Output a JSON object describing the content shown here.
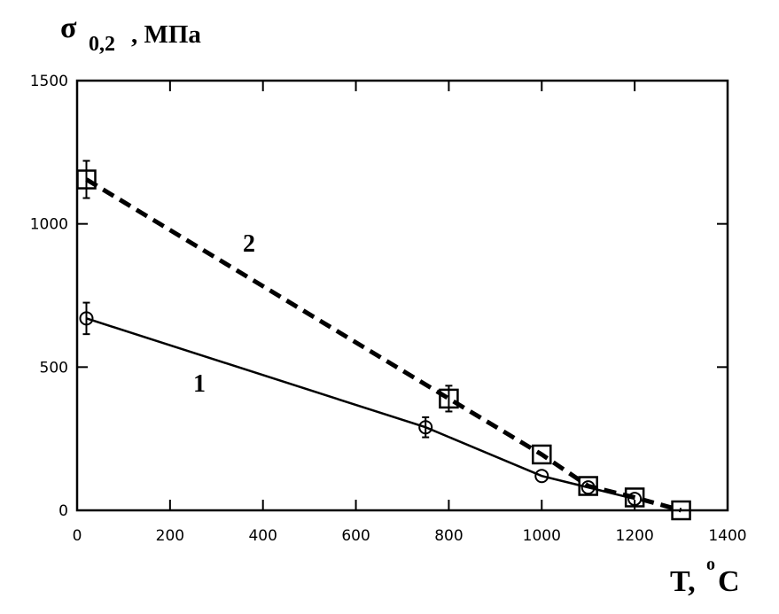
{
  "chart_data": {
    "type": "line",
    "ylabel_symbol": "σ",
    "ylabel_sub": "0,2",
    "ylabel_unit": ", МПа",
    "xlabel": "T, ",
    "xlabel_sup": "o",
    "xlabel_unit": "C",
    "xlim": [
      0,
      1400
    ],
    "ylim": [
      0,
      1500
    ],
    "xticks": [
      0,
      200,
      400,
      600,
      800,
      1000,
      1200,
      1400
    ],
    "yticks": [
      0,
      500,
      1000,
      1500
    ],
    "grid": false,
    "series": [
      {
        "label": "1",
        "marker": "circle",
        "line": "solid",
        "x": [
          20,
          750,
          1000,
          1100,
          1200
        ],
        "y": [
          670,
          290,
          120,
          80,
          40
        ],
        "yerr": [
          55,
          35,
          0,
          0,
          0
        ]
      },
      {
        "label": "2",
        "marker": "square",
        "line": "dashed",
        "x": [
          20,
          800,
          1000,
          1100,
          1200,
          1300
        ],
        "y": [
          1155,
          390,
          195,
          85,
          45,
          0
        ],
        "yerr": [
          65,
          45,
          0,
          0,
          0,
          0
        ]
      }
    ],
    "color": "#000000"
  }
}
